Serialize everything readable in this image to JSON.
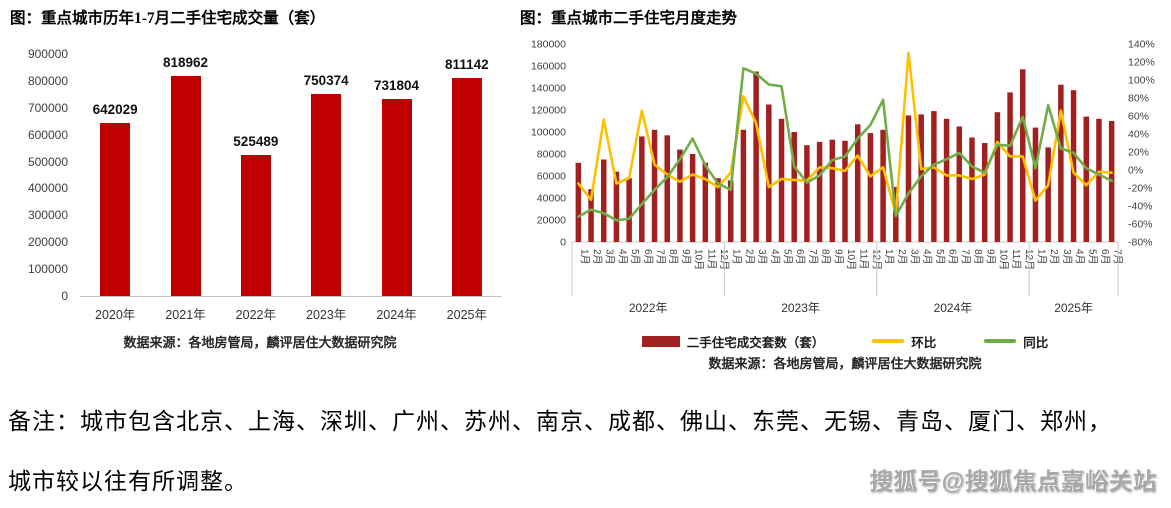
{
  "left_chart": {
    "title": "图：重点城市历年1-7月二手住宅成交量（套）",
    "source": "数据来源：各地房管局，麟评居住大数据研究院"
  },
  "right_chart": {
    "title": "图：重点城市二手住宅月度走势",
    "source": "数据来源：各地房管局，麟评居住大数据研究院",
    "legend": [
      {
        "label": "二手住宅成交套数（套）",
        "type": "bar",
        "color": "#A12121"
      },
      {
        "label": "环比",
        "type": "line",
        "color": "#FFC000"
      },
      {
        "label": "同比",
        "type": "line",
        "color": "#70AD47"
      }
    ]
  },
  "note": {
    "line1": "备注：城市包含北京、上海、深圳、广州、苏州、南京、成都、佛山、东莞、无锡、青岛、厦门、郑州，",
    "line2": "城市较以往有所调整。"
  },
  "watermark": "搜狐号@搜狐焦点嘉峪关站",
  "colors": {
    "left_bar": "#C00000",
    "right_bar": "#A12121",
    "mom_line": "#FFC000",
    "yoy_line": "#70AD47",
    "axis_text": "#3f3f3f",
    "separator": "#c8c8c8"
  },
  "chart_data": [
    {
      "type": "bar",
      "title": "图：重点城市历年1-7月二手住宅成交量（套）",
      "categories": [
        "2020年",
        "2021年",
        "2022年",
        "2023年",
        "2024年",
        "2025年"
      ],
      "values": [
        642029,
        818962,
        525489,
        750374,
        731804,
        811142
      ],
      "data_labels": [
        "642029",
        "818962",
        "525489",
        "750374",
        "731804",
        "811142"
      ],
      "ylim": [
        0,
        900000
      ],
      "ytick_labels": [
        "900000",
        "800000",
        "700000",
        "600000",
        "500000",
        "400000",
        "300000",
        "200000",
        "100000",
        "0"
      ],
      "grid": false,
      "bar_color": "#C00000",
      "source": "数据来源：各地房管局，麟评居住大数据研究院"
    },
    {
      "type": "combo",
      "title": "图：重点城市二手住宅月度走势",
      "year_groups": [
        {
          "year": "2022年",
          "month_labels": [
            "1月",
            "2月",
            "3月",
            "4月",
            "5月",
            "6月",
            "7月",
            "8月",
            "9月",
            "10月",
            "11月",
            "12月"
          ]
        },
        {
          "year": "2023年",
          "month_labels": [
            "1月",
            "2月",
            "3月",
            "4月",
            "5月",
            "6月",
            "7月",
            "8月",
            "9月",
            "10月",
            "11月",
            "12月"
          ]
        },
        {
          "year": "2024年",
          "month_labels": [
            "1月",
            "2月",
            "3月",
            "4月",
            "5月",
            "6月",
            "7月",
            "8月",
            "9月",
            "10月",
            "11月",
            "12月"
          ]
        },
        {
          "year": "2025年",
          "month_labels": [
            "1月",
            "2月",
            "3月",
            "4月",
            "5月",
            "6月",
            "7月"
          ]
        }
      ],
      "bars": {
        "name": "二手住宅成交套数（套）",
        "color": "#A12121",
        "axis": "left",
        "values": [
          72000,
          48000,
          75000,
          64000,
          58000,
          96000,
          102000,
          97000,
          84000,
          80000,
          72000,
          58000,
          56000,
          102000,
          155000,
          125000,
          112000,
          100000,
          88000,
          91000,
          93000,
          92000,
          107000,
          99000,
          102000,
          50000,
          115000,
          116000,
          119000,
          112000,
          105000,
          95000,
          90000,
          118000,
          136000,
          157000,
          104000,
          86000,
          143000,
          138000,
          114000,
          112000,
          110000
        ]
      },
      "lines": [
        {
          "name": "环比",
          "color": "#FFC000",
          "axis": "right_pct",
          "values": [
            -15,
            -33,
            56,
            -15,
            -9,
            66,
            6,
            -5,
            -13,
            -5,
            -10,
            -19,
            -3,
            82,
            52,
            -19,
            -10,
            -11,
            -12,
            3,
            2,
            -1,
            16,
            -7,
            3,
            -49,
            130,
            1,
            3,
            -6,
            -6,
            -10,
            -5,
            31,
            15,
            15,
            -34,
            -17,
            66,
            -3,
            -17,
            -2,
            -3
          ]
        },
        {
          "name": "同比",
          "color": "#70AD47",
          "axis": "right_pct",
          "values": [
            -52,
            -44,
            -48,
            -56,
            -54,
            -38,
            -22,
            -8,
            12,
            35,
            5,
            -15,
            -22,
            113,
            107,
            95,
            93,
            4,
            -14,
            -6,
            11,
            15,
            35,
            50,
            78,
            -51,
            -26,
            -7,
            6,
            12,
            19,
            4,
            -3,
            28,
            27,
            59,
            2,
            72,
            24,
            19,
            2,
            -5,
            -12
          ]
        }
      ],
      "left_ylim": [
        0,
        180000
      ],
      "left_ytick_labels": [
        "180000",
        "160000",
        "140000",
        "120000",
        "100000",
        "80000",
        "60000",
        "40000",
        "20000",
        "0"
      ],
      "right_ylim_pct": [
        -80,
        140
      ],
      "right_ytick_labels": [
        "140%",
        "120%",
        "100%",
        "80%",
        "60%",
        "40%",
        "20%",
        "0%",
        "-20%",
        "-40%",
        "-60%",
        "-80%"
      ],
      "grid": false,
      "legend_position": "bottom",
      "source": "数据来源：各地房管局，麟评居住大数据研究院"
    }
  ]
}
